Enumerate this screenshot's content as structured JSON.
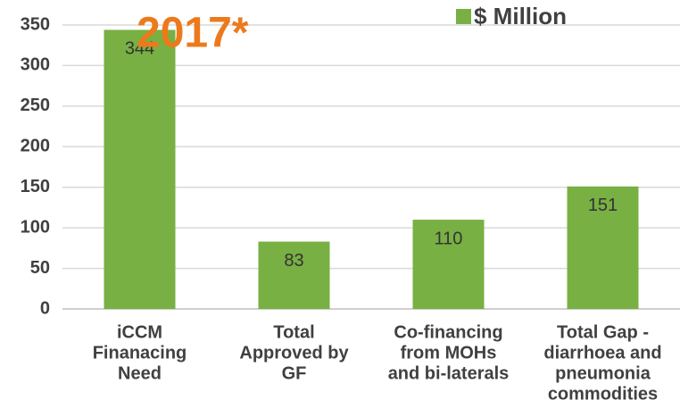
{
  "chart_data": {
    "type": "bar",
    "title": "2017*",
    "title_color": "#ec7a1c",
    "categories": [
      [
        "iCCM",
        "Finanacing",
        "Need"
      ],
      [
        "Total",
        "Approved by",
        "GF"
      ],
      [
        "Co-financing",
        "from MOHs",
        "and bi-laterals"
      ],
      [
        "Total Gap -",
        "diarrhoea and",
        "pneumonia",
        "commodities"
      ]
    ],
    "series": [
      {
        "name": "$ Million",
        "color": "#78b043",
        "values": [
          344,
          83,
          110,
          151
        ]
      }
    ],
    "ylim": [
      0,
      350
    ],
    "yticks": [
      0,
      50,
      100,
      150,
      200,
      250,
      300,
      350
    ],
    "grid": true,
    "legend": "top-right"
  }
}
